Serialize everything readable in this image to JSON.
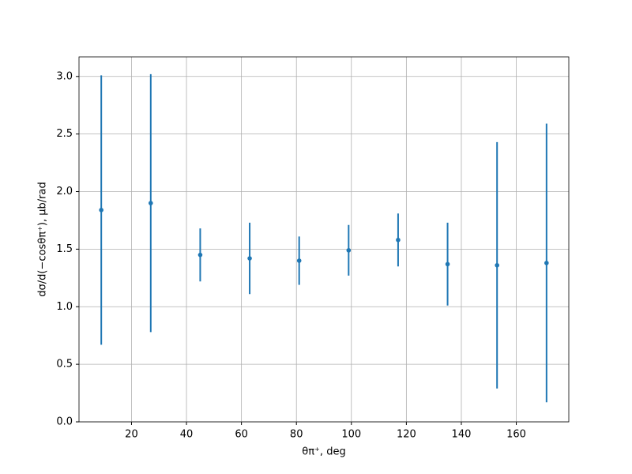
{
  "chart_data": {
    "type": "errorbar",
    "xlabel": "θπ⁺, deg",
    "ylabel": "dσ/d(−cosθπ⁺), μb/rad",
    "x": [
      9,
      27,
      45,
      63,
      81,
      99,
      117,
      135,
      153,
      171
    ],
    "series": [
      {
        "color": "#1f77b4",
        "values": [
          1.84,
          1.9,
          1.45,
          1.42,
          1.4,
          1.49,
          1.58,
          1.37,
          1.36,
          1.38
        ],
        "errors": [
          1.17,
          1.12,
          0.23,
          0.31,
          0.21,
          0.22,
          0.23,
          0.36,
          1.07,
          1.21
        ]
      }
    ],
    "xlim": [
      0.9,
      179.1
    ],
    "ylim": [
      0,
      3.17
    ],
    "xticks": [
      20,
      40,
      60,
      80,
      100,
      120,
      140,
      160
    ],
    "yticks": [
      {
        "value": 0,
        "label": "0.0"
      },
      {
        "value": 0.5,
        "label": "0.5"
      },
      {
        "value": 1,
        "label": "1.0"
      },
      {
        "value": 1.5,
        "label": "1.5"
      },
      {
        "value": 2,
        "label": "2.0"
      },
      {
        "value": 2.5,
        "label": "2.5"
      },
      {
        "value": 3,
        "label": "3.0"
      }
    ],
    "grid": true
  }
}
